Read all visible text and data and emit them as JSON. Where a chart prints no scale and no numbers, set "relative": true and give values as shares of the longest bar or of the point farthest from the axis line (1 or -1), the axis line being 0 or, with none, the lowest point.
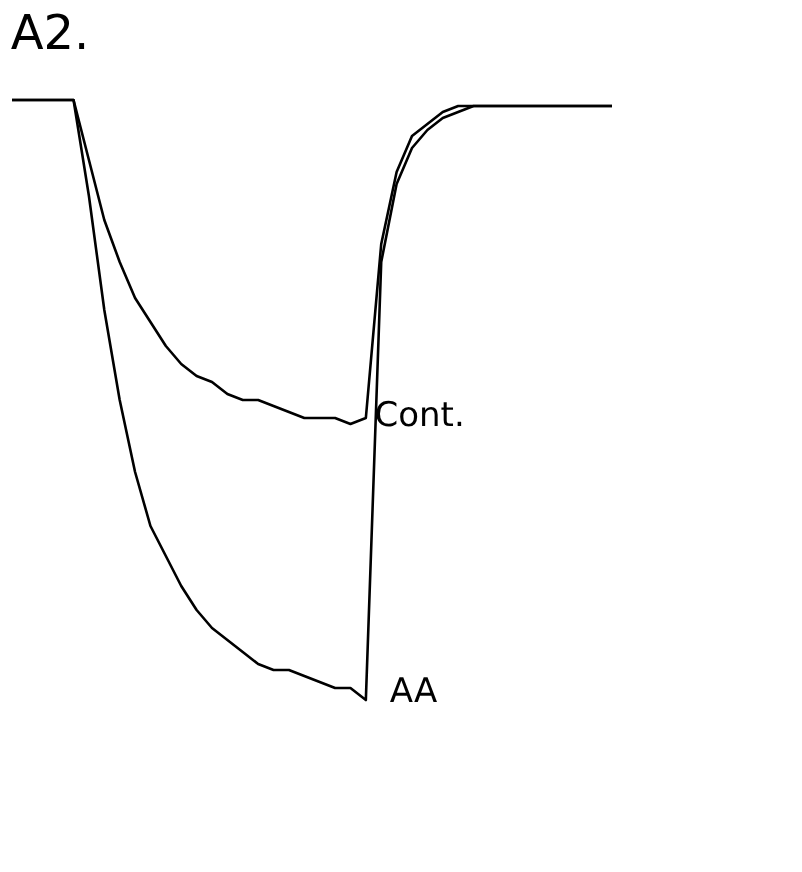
{
  "chart_data": {
    "type": "line",
    "title": "A2.",
    "relative": true,
    "legend": false,
    "grid": false,
    "marker": "none",
    "line_style": "solid",
    "categories": [
      null,
      null,
      null,
      null,
      null,
      null,
      null,
      null,
      null,
      null,
      null,
      null,
      null,
      null,
      null,
      null,
      null,
      null,
      null,
      null,
      null,
      null,
      null,
      null,
      null,
      null,
      null,
      null,
      null,
      null,
      null,
      null,
      null,
      null,
      null,
      null,
      null,
      null,
      null,
      null
    ],
    "series": [
      {
        "name": "Cont.",
        "color": "#000000",
        "values": [
          1.0,
          1.0,
          1.0,
          1.0,
          1.0,
          0.9,
          0.8,
          0.73,
          0.67,
          0.63,
          0.59,
          0.56,
          0.54,
          0.53,
          0.51,
          0.5,
          0.5,
          0.49,
          0.48,
          0.47,
          0.47,
          0.47,
          0.46,
          0.47,
          0.76,
          0.88,
          0.94,
          0.96,
          0.98,
          0.99,
          0.99,
          0.99,
          0.99,
          0.99,
          0.99,
          0.99,
          0.99,
          0.99,
          0.99,
          0.99
        ]
      },
      {
        "name": "AA",
        "color": "#000000",
        "values": [
          1.0,
          1.0,
          1.0,
          1.0,
          1.0,
          0.84,
          0.65,
          0.5,
          0.38,
          0.29,
          0.24,
          0.19,
          0.15,
          0.12,
          0.1,
          0.08,
          0.06,
          0.05,
          0.05,
          0.04,
          0.03,
          0.02,
          0.02,
          0.0,
          0.73,
          0.86,
          0.92,
          0.95,
          0.97,
          0.98,
          0.99,
          0.99,
          0.99,
          0.99,
          0.99,
          0.99,
          0.99,
          0.99,
          0.99,
          0.99
        ]
      }
    ]
  }
}
